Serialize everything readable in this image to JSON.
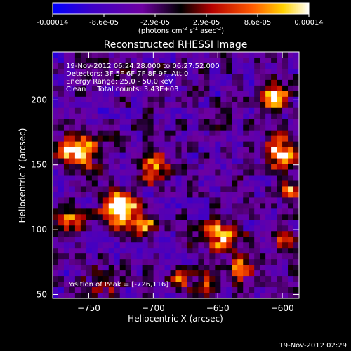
{
  "colorbar": {
    "ticks": [
      "-0.00014",
      "-8.6e-05",
      "-2.9e-05",
      "2.9e-05",
      "8.6e-05",
      "0.00014"
    ],
    "units_prefix": "(photons cm",
    "units_exp1": "-2",
    "units_mid": " s",
    "units_exp2": "-1",
    "units_suffix": " asec",
    "units_exp3": "-2",
    "units_close": ")",
    "colors": [
      "#0000ff",
      "#3c00c8",
      "#6e00a0",
      "#000000",
      "#b40000",
      "#ff5a00",
      "#ffd200",
      "#ffffff"
    ]
  },
  "chart_data": {
    "type": "heatmap",
    "title": "Reconstructed RHESSI Image",
    "xlabel": "Heliocentric X (arcsec)",
    "ylabel": "Heliocentric Y (arcsec)",
    "xlim": [
      -778,
      -587
    ],
    "ylim": [
      47,
      237
    ],
    "xticks": [
      -750,
      -700,
      -650,
      -600
    ],
    "yticks": [
      50,
      100,
      150,
      200
    ],
    "value_range": [
      -0.00014,
      0.00014
    ],
    "annotations": [
      "19-Nov-2012 06:24:28.000 to 06:27:52.000",
      "Detectors: 3F 5F 6F 7F 8F 9F, Att 0",
      "Energy Range: 25.0 - 50.0 keV",
      "Clean     Total counts: 3.43E+03"
    ],
    "peak_label": "Position of Peak = [-726,116]",
    "peak": [
      -726,
      116
    ],
    "hotspots": [
      {
        "x": -726,
        "y": 116,
        "sigma": 9,
        "amp": 1.0
      },
      {
        "x": -755,
        "y": 160,
        "sigma": 8,
        "amp": 0.8
      },
      {
        "x": -770,
        "y": 160,
        "sigma": 6,
        "amp": 0.6
      },
      {
        "x": -700,
        "y": 148,
        "sigma": 8,
        "amp": 0.75
      },
      {
        "x": -706,
        "y": 104,
        "sigma": 6,
        "amp": 0.6
      },
      {
        "x": -648,
        "y": 95,
        "sigma": 9,
        "amp": 0.75
      },
      {
        "x": -632,
        "y": 72,
        "sigma": 7,
        "amp": 0.65
      },
      {
        "x": -600,
        "y": 160,
        "sigma": 8,
        "amp": 0.85
      },
      {
        "x": -607,
        "y": 200,
        "sigma": 7,
        "amp": 0.85
      },
      {
        "x": -593,
        "y": 130,
        "sigma": 5,
        "amp": 0.6
      },
      {
        "x": -765,
        "y": 108,
        "sigma": 7,
        "amp": 0.6
      },
      {
        "x": -740,
        "y": 60,
        "sigma": 6,
        "amp": 0.55
      },
      {
        "x": -680,
        "y": 62,
        "sigma": 6,
        "amp": 0.5
      },
      {
        "x": -658,
        "y": 58,
        "sigma": 6,
        "amp": 0.5
      },
      {
        "x": -598,
        "y": 92,
        "sigma": 6,
        "amp": 0.55
      }
    ]
  },
  "footer": {
    "timestamp": "19-Nov-2012 02:29"
  }
}
